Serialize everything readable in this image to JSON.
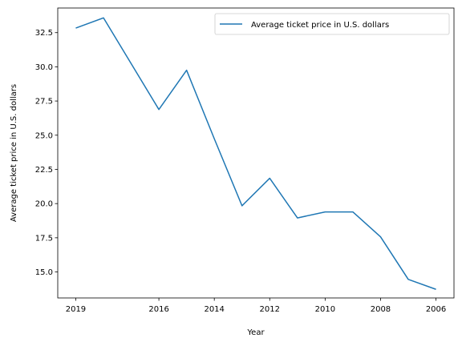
{
  "chart_data": {
    "type": "line",
    "title": "",
    "xlabel": "Year",
    "ylabel": "Average ticket price in U.S. dollars",
    "x_ticks": [
      "2019",
      "2016",
      "2014",
      "2012",
      "2010",
      "2008",
      "2006"
    ],
    "y_ticks": [
      "15.0",
      "17.5",
      "20.0",
      "22.5",
      "25.0",
      "27.5",
      "30.0",
      "32.5"
    ],
    "ylim": [
      13.1,
      34.3
    ],
    "x_reversed": true,
    "legend_position": "upper-right",
    "grid": false,
    "series": [
      {
        "name": "Average ticket price in U.S. dollars",
        "color": "#1f77b4",
        "x": [
          2019,
          2018,
          2016,
          2015,
          2014,
          2013,
          2012,
          2011,
          2010,
          2009,
          2008,
          2007,
          2006
        ],
        "values": [
          32.83,
          33.58,
          26.88,
          29.75,
          24.74,
          19.84,
          21.85,
          18.95,
          19.39,
          19.39,
          17.57,
          14.46,
          13.73
        ]
      }
    ]
  }
}
